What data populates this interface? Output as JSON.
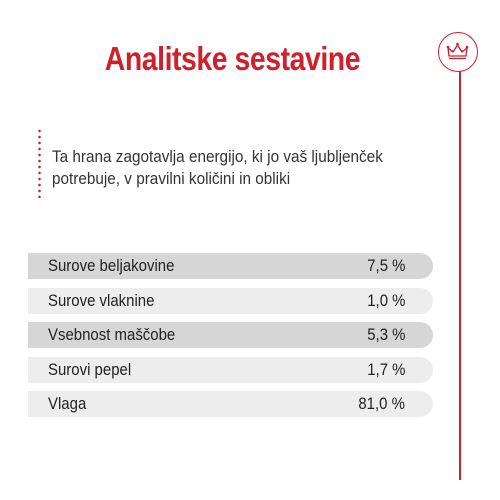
{
  "title": "Analitske sestavine",
  "intro": "Ta hrana zagotavlja energijo, ki jo vaš ljubljenček potrebuje, v pravilni količini in obliki",
  "brand": {
    "icon": "crown-icon",
    "color": "#d0202c"
  },
  "rows": [
    {
      "label": "Surove beljakovine",
      "value": "7,5 %"
    },
    {
      "label": "Surove vlaknine",
      "value": "1,0 %"
    },
    {
      "label": "Vsebnost maščobe",
      "value": "5,3 %"
    },
    {
      "label": "Surovi pepel",
      "value": "1,7 %"
    },
    {
      "label": "Vlaga",
      "value": "81,0 %"
    }
  ]
}
